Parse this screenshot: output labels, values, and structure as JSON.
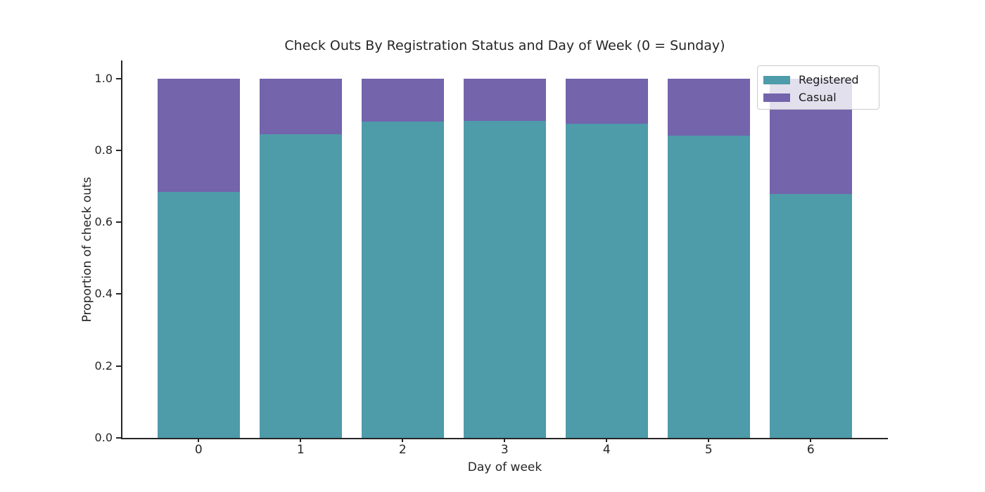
{
  "figure": {
    "title": "Check Outs By Registration Status and Day of Week (0 = Sunday)",
    "xlabel": "Day of week",
    "ylabel": "Proportion of check outs"
  },
  "legend": {
    "items": [
      {
        "label": "Registered",
        "color": "#4E9BAA"
      },
      {
        "label": "Casual",
        "color": "#7364AC"
      }
    ]
  },
  "chart_data": {
    "type": "bar",
    "stacked": true,
    "title": "Check Outs By Registration Status and Day of Week (0 = Sunday)",
    "xlabel": "Day of week",
    "ylabel": "Proportion of check outs",
    "categories": [
      "0",
      "1",
      "2",
      "3",
      "4",
      "5",
      "6"
    ],
    "series": [
      {
        "name": "Registered",
        "color": "#4E9BAA",
        "values": [
          0.684,
          0.845,
          0.879,
          0.882,
          0.874,
          0.84,
          0.678
        ]
      },
      {
        "name": "Casual",
        "color": "#7364AC",
        "values": [
          0.316,
          0.155,
          0.121,
          0.118,
          0.126,
          0.16,
          0.322
        ]
      }
    ],
    "ylim": [
      0,
      1.05
    ],
    "yticks": [
      "0.0",
      "0.2",
      "0.4",
      "0.6",
      "0.8",
      "1.0"
    ],
    "grid": false,
    "legend_position": "upper right"
  }
}
